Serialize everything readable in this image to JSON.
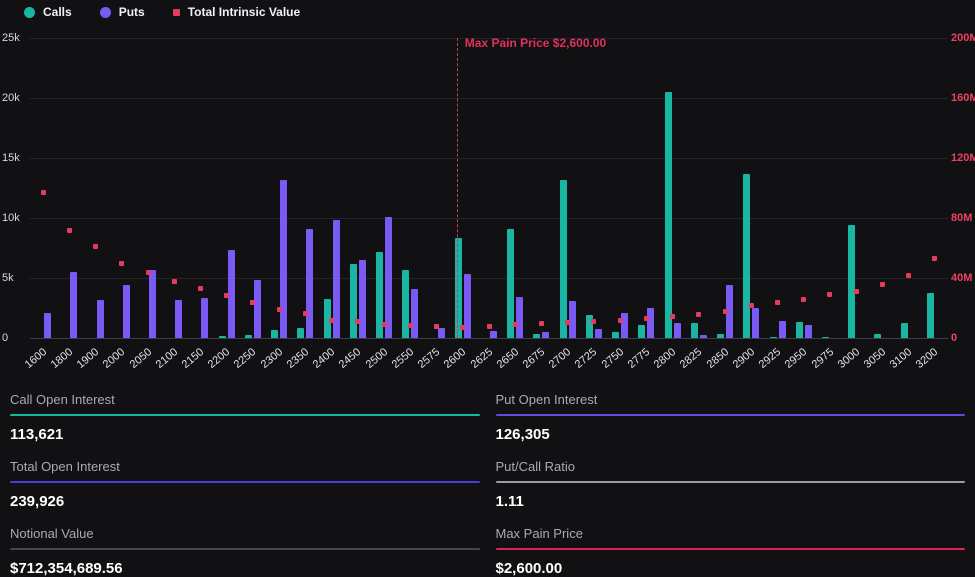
{
  "legend": [
    {
      "label": "Calls",
      "color": "#1ab5a3",
      "shape": "circle"
    },
    {
      "label": "Puts",
      "color": "#7a5af5",
      "shape": "circle"
    },
    {
      "label": "Total Intrinsic Value",
      "color": "#e73a5f",
      "shape": "square"
    }
  ],
  "chart_data": {
    "type": "bar",
    "title": "",
    "categories": [
      "1600",
      "1800",
      "1900",
      "2000",
      "2050",
      "2100",
      "2150",
      "2200",
      "2250",
      "2300",
      "2350",
      "2400",
      "2450",
      "2500",
      "2550",
      "2575",
      "2600",
      "2625",
      "2650",
      "2675",
      "2700",
      "2725",
      "2750",
      "2775",
      "2800",
      "2825",
      "2850",
      "2900",
      "2925",
      "2950",
      "2975",
      "3000",
      "3050",
      "3100",
      "3200"
    ],
    "series": [
      {
        "name": "Calls",
        "type": "bar",
        "axis": "left",
        "color": "#1ab5a3",
        "values": [
          0,
          0,
          0,
          0,
          0,
          0,
          0,
          150,
          250,
          700,
          800,
          3250,
          6150,
          7200,
          5650,
          0,
          8350,
          0,
          9050,
          300,
          13200,
          1900,
          520,
          1080,
          20500,
          1220,
          300,
          13700,
          100,
          1350,
          100,
          9400,
          330,
          1250,
          3760
        ]
      },
      {
        "name": "Puts",
        "type": "bar",
        "axis": "left",
        "color": "#7a5af5",
        "values": [
          2100,
          5500,
          3200,
          4450,
          5700,
          3150,
          3300,
          7350,
          4800,
          13200,
          9100,
          9800,
          6500,
          10100,
          4050,
          800,
          5350,
          600,
          3450,
          500,
          3100,
          720,
          2050,
          2460,
          1270,
          250,
          4400,
          2540,
          1450,
          1080,
          0,
          0,
          0,
          0,
          0
        ]
      },
      {
        "name": "Total Intrinsic Value",
        "type": "scatter",
        "axis": "right",
        "color": "#e73a5f",
        "values_millions": [
          97,
          72,
          61,
          50,
          43.5,
          38,
          33,
          28.5,
          24,
          19,
          16.5,
          12,
          11,
          9.3,
          8.5,
          8,
          7.2,
          8,
          9,
          9.7,
          10.3,
          11,
          12,
          13,
          14.5,
          16,
          17.5,
          22,
          24,
          26,
          29,
          31,
          36,
          41.5,
          53
        ]
      }
    ],
    "left_axis": {
      "ticks": [
        "0",
        "5k",
        "10k",
        "15k",
        "20k",
        "25k"
      ],
      "max": 25000,
      "color": "#d9d9de"
    },
    "right_axis": {
      "ticks": [
        "0",
        "40M",
        "80M",
        "120M",
        "160M",
        "200M"
      ],
      "max_millions": 200,
      "color": "#ef4060"
    },
    "annotation": {
      "label": "Max Pain Price $2,600.00",
      "x": "2600",
      "color": "#e0315c"
    },
    "grid": true,
    "legend_position": "top-left"
  },
  "stats": [
    {
      "label": "Call Open Interest",
      "value": "113,621",
      "underline": "#14b8a6"
    },
    {
      "label": "Put Open Interest",
      "value": "126,305",
      "underline": "#5b4fe0"
    },
    {
      "label": "Total Open Interest",
      "value": "239,926",
      "underline": "#4a3ed8"
    },
    {
      "label": "Put/Call Ratio",
      "value": "1.11",
      "underline": "#9a9aa2"
    },
    {
      "label": "Notional Value",
      "value": "$712,354,689.56",
      "underline": "#45454c"
    },
    {
      "label": "Max Pain Price",
      "value": "$2,600.00",
      "underline": "#dd2256"
    }
  ]
}
